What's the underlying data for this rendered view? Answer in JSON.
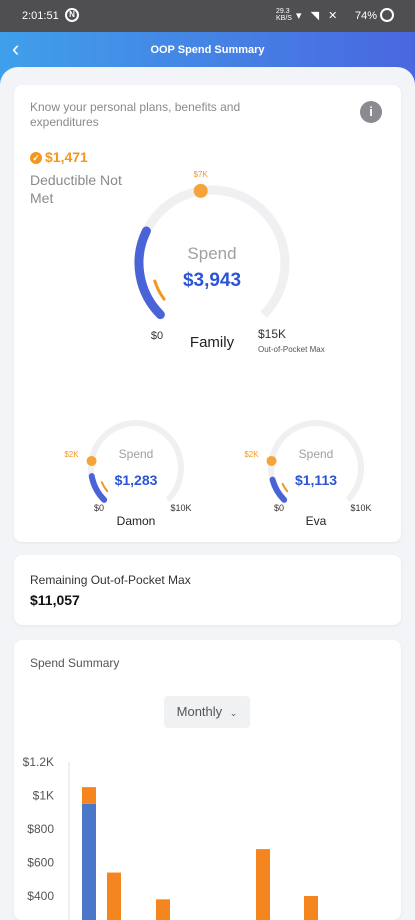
{
  "status_bar": {
    "time": "2:01:51",
    "network": "29.3\nKB/S",
    "battery": "74%"
  },
  "header": {
    "title": "OOP Spend Summary"
  },
  "summary_card": {
    "intro": "Know your personal plans, benefits and expenditures",
    "deductible_amount": "$1,471",
    "deductible_label": "Deductible Not Met",
    "family": {
      "name": "Family",
      "spend_label": "Spend",
      "spend_value": "$3,943",
      "min_label": "$0",
      "max_label": "$15K",
      "max_sublabel": "Out-of-Pocket Max",
      "deductible_marker": "$7K",
      "spend_fraction": 0.263,
      "deductible_fraction": 0.467,
      "deductible_progress_fraction": 0.072
    },
    "members": [
      {
        "name": "Damon",
        "spend_label": "Spend",
        "spend_value": "$1,283",
        "min_label": "$0",
        "max_label": "$10K",
        "deductible_marker": "$2K",
        "spend_fraction": 0.128,
        "deductible_progress_fraction": 0.06
      },
      {
        "name": "Eva",
        "spend_label": "Spend",
        "spend_value": "$1,113",
        "min_label": "$0",
        "max_label": "$10K",
        "deductible_marker": "$2K",
        "spend_fraction": 0.111,
        "deductible_progress_fraction": 0.05
      }
    ]
  },
  "remaining_card": {
    "label": "Remaining Out-of-Pocket Max",
    "value": "$11,057"
  },
  "spend_summary_card": {
    "title": "Spend Summary",
    "period_select": "Monthly"
  },
  "chart_data": {
    "type": "bar",
    "stacked": true,
    "ylim": [
      0,
      1200
    ],
    "yticks": [
      "$1.2K",
      "$1K",
      "$800",
      "$600",
      "$400"
    ],
    "ytick_values": [
      1200,
      1000,
      800,
      600,
      400
    ],
    "series": [
      {
        "color": "#4a77c8",
        "values": [
          950,
          0,
          0,
          0,
          0
        ]
      },
      {
        "color": "#f5861f",
        "values": [
          100,
          540,
          380,
          680,
          400
        ]
      }
    ]
  },
  "colors": {
    "accent_blue": "#2b55d6",
    "orange": "#f5961d",
    "arc_blue": "#4a63d6",
    "track": "#f0f0f3"
  }
}
